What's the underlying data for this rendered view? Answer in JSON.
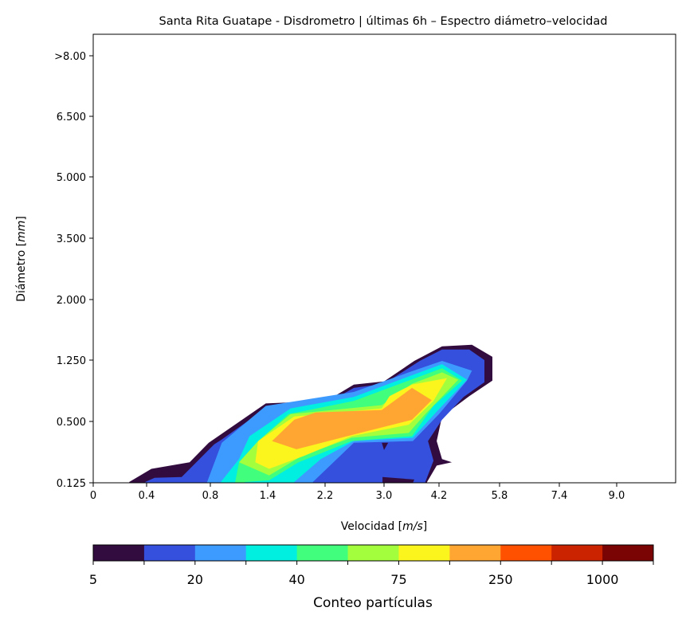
{
  "chart_data": {
    "type": "contour",
    "title": "Santa Rita Guatape - Disdrometro | últimas 6h – Espectro diámetro–velocidad",
    "xlabel": "Velocidad",
    "xlabel_unit": "m/s",
    "ylabel": "Diámetro",
    "ylabel_unit": "mm",
    "x_ticks": [
      "0",
      "0.4",
      "0.8",
      "1.4",
      "2.2",
      "3.0",
      "4.2",
      "5.8",
      "7.4",
      "9.0"
    ],
    "x_tick_values": [
      0,
      0.4,
      0.8,
      1.4,
      2.2,
      3.0,
      4.2,
      5.8,
      7.4,
      9.0
    ],
    "y_ticks": [
      "0.125",
      "0.500",
      "1.250",
      "2.000",
      "3.500",
      "5.000",
      "6.500",
      ">8.00"
    ],
    "y_tick_values": [
      0.125,
      0.5,
      1.25,
      2.0,
      3.5,
      5.0,
      6.5,
      8.0
    ],
    "grid": false,
    "colorbar": {
      "label": "Conteo partículas",
      "placement": "bottom",
      "tick_labels": [
        "5",
        "20",
        "40",
        "75",
        "250",
        "1000"
      ],
      "colors": [
        "#330c3f",
        "#3450dc",
        "#3d9bff",
        "#00efe1",
        "#41ff7c",
        "#a3ff3d",
        "#fbf41d",
        "#ffa632",
        "#ff5100",
        "#cb2300",
        "#7a0403"
      ]
    },
    "contours": [
      {
        "bin": 0,
        "points": [
          [
            0.27,
            0.125
          ],
          [
            0.27,
            0.13
          ],
          [
            0.43,
            0.21
          ],
          [
            0.67,
            0.25
          ],
          [
            0.79,
            0.37
          ],
          [
            1.38,
            0.72
          ],
          [
            2.22,
            0.75
          ],
          [
            2.59,
            0.95
          ],
          [
            3.0,
            0.99
          ],
          [
            3.66,
            1.24
          ],
          [
            4.28,
            1.42
          ],
          [
            5.07,
            1.44
          ],
          [
            5.61,
            1.29
          ],
          [
            5.61,
            1.0
          ],
          [
            5.0,
            0.81
          ],
          [
            4.28,
            0.56
          ],
          [
            4.15,
            0.38
          ],
          [
            4.28,
            0.27
          ],
          [
            4.54,
            0.25
          ],
          [
            4.15,
            0.23
          ],
          [
            3.94,
            0.13
          ],
          [
            3.94,
            0.125
          ]
        ]
      },
      {
        "bin": 1,
        "points": [
          [
            0.39,
            0.125
          ],
          [
            0.39,
            0.13
          ],
          [
            0.45,
            0.155
          ],
          [
            0.62,
            0.16
          ],
          [
            0.84,
            0.36
          ],
          [
            0.92,
            0.39
          ],
          [
            1.42,
            0.69
          ],
          [
            2.22,
            0.72
          ],
          [
            2.59,
            0.91
          ],
          [
            3.0,
            0.96
          ],
          [
            3.78,
            1.24
          ],
          [
            4.28,
            1.38
          ],
          [
            5.0,
            1.38
          ],
          [
            5.4,
            1.25
          ],
          [
            5.4,
            0.98
          ],
          [
            4.85,
            0.8
          ],
          [
            4.28,
            0.52
          ],
          [
            3.96,
            0.38
          ],
          [
            4.08,
            0.26
          ],
          [
            3.9,
            0.13
          ],
          [
            3.9,
            0.125
          ]
        ]
      },
      {
        "bin": 0,
        "points": [
          [
            2.98,
            0.125
          ],
          [
            2.98,
            0.16
          ],
          [
            3.66,
            0.145
          ],
          [
            3.63,
            0.125
          ]
        ]
      },
      {
        "bin": 0,
        "points": [
          [
            2.97,
            0.37
          ],
          [
            3.09,
            0.37
          ],
          [
            3.0,
            0.325
          ]
        ]
      },
      {
        "bin": 2,
        "points": [
          [
            0.78,
            0.125
          ],
          [
            0.78,
            0.13
          ],
          [
            0.92,
            0.37
          ],
          [
            1.38,
            0.69
          ],
          [
            2.59,
            0.86
          ],
          [
            3.54,
            1.1
          ],
          [
            4.28,
            1.24
          ],
          [
            5.07,
            1.12
          ],
          [
            4.94,
            1.0
          ],
          [
            4.2,
            0.59
          ],
          [
            3.63,
            0.38
          ],
          [
            2.59,
            0.37
          ],
          [
            2.03,
            0.13
          ],
          [
            2.03,
            0.125
          ]
        ]
      },
      {
        "bin": 3,
        "points": [
          [
            0.91,
            0.125
          ],
          [
            0.91,
            0.13
          ],
          [
            1.1,
            0.27
          ],
          [
            1.21,
            0.41
          ],
          [
            1.72,
            0.66
          ],
          [
            2.59,
            0.8
          ],
          [
            3.54,
            1.05
          ],
          [
            4.28,
            1.2
          ],
          [
            4.94,
            1.01
          ],
          [
            4.15,
            0.62
          ],
          [
            3.63,
            0.4
          ],
          [
            2.59,
            0.38
          ],
          [
            2.14,
            0.27
          ],
          [
            1.77,
            0.13
          ],
          [
            1.77,
            0.125
          ]
        ]
      },
      {
        "bin": 4,
        "points": [
          [
            1.06,
            0.125
          ],
          [
            1.06,
            0.13
          ],
          [
            1.1,
            0.25
          ],
          [
            1.3,
            0.38
          ],
          [
            1.69,
            0.59
          ],
          [
            2.59,
            0.75
          ],
          [
            3.54,
            1.0
          ],
          [
            4.28,
            1.15
          ],
          [
            4.81,
            1.0
          ],
          [
            4.08,
            0.69
          ],
          [
            3.61,
            0.41
          ],
          [
            2.56,
            0.38
          ],
          [
            1.83,
            0.25
          ],
          [
            1.42,
            0.14
          ],
          [
            1.16,
            0.13
          ],
          [
            1.16,
            0.125
          ]
        ]
      },
      {
        "bin": 5,
        "points": [
          [
            1.1,
            0.25
          ],
          [
            1.3,
            0.38
          ],
          [
            1.72,
            0.59
          ],
          [
            2.97,
            0.7
          ],
          [
            3.61,
            0.96
          ],
          [
            4.28,
            1.1
          ],
          [
            4.71,
            1.01
          ],
          [
            3.9,
            0.59
          ],
          [
            3.54,
            0.43
          ],
          [
            2.56,
            0.4
          ],
          [
            1.88,
            0.29
          ],
          [
            1.42,
            0.17
          ]
        ]
      },
      {
        "bin": 6,
        "points": [
          [
            1.27,
            0.25
          ],
          [
            1.3,
            0.38
          ],
          [
            1.77,
            0.56
          ],
          [
            2.97,
            0.66
          ],
          [
            3.12,
            0.81
          ],
          [
            3.61,
            0.95
          ],
          [
            4.41,
            1.03
          ],
          [
            4.08,
            0.75
          ],
          [
            3.54,
            0.48
          ],
          [
            2.56,
            0.41
          ],
          [
            1.91,
            0.29
          ],
          [
            1.42,
            0.21
          ]
        ]
      },
      {
        "bin": 7,
        "points": [
          [
            1.46,
            0.38
          ],
          [
            1.77,
            0.52
          ],
          [
            2.07,
            0.61
          ],
          [
            2.97,
            0.64
          ],
          [
            3.61,
            0.91
          ],
          [
            4.04,
            0.76
          ],
          [
            3.61,
            0.52
          ],
          [
            2.59,
            0.42
          ],
          [
            1.8,
            0.33
          ]
        ]
      }
    ]
  }
}
